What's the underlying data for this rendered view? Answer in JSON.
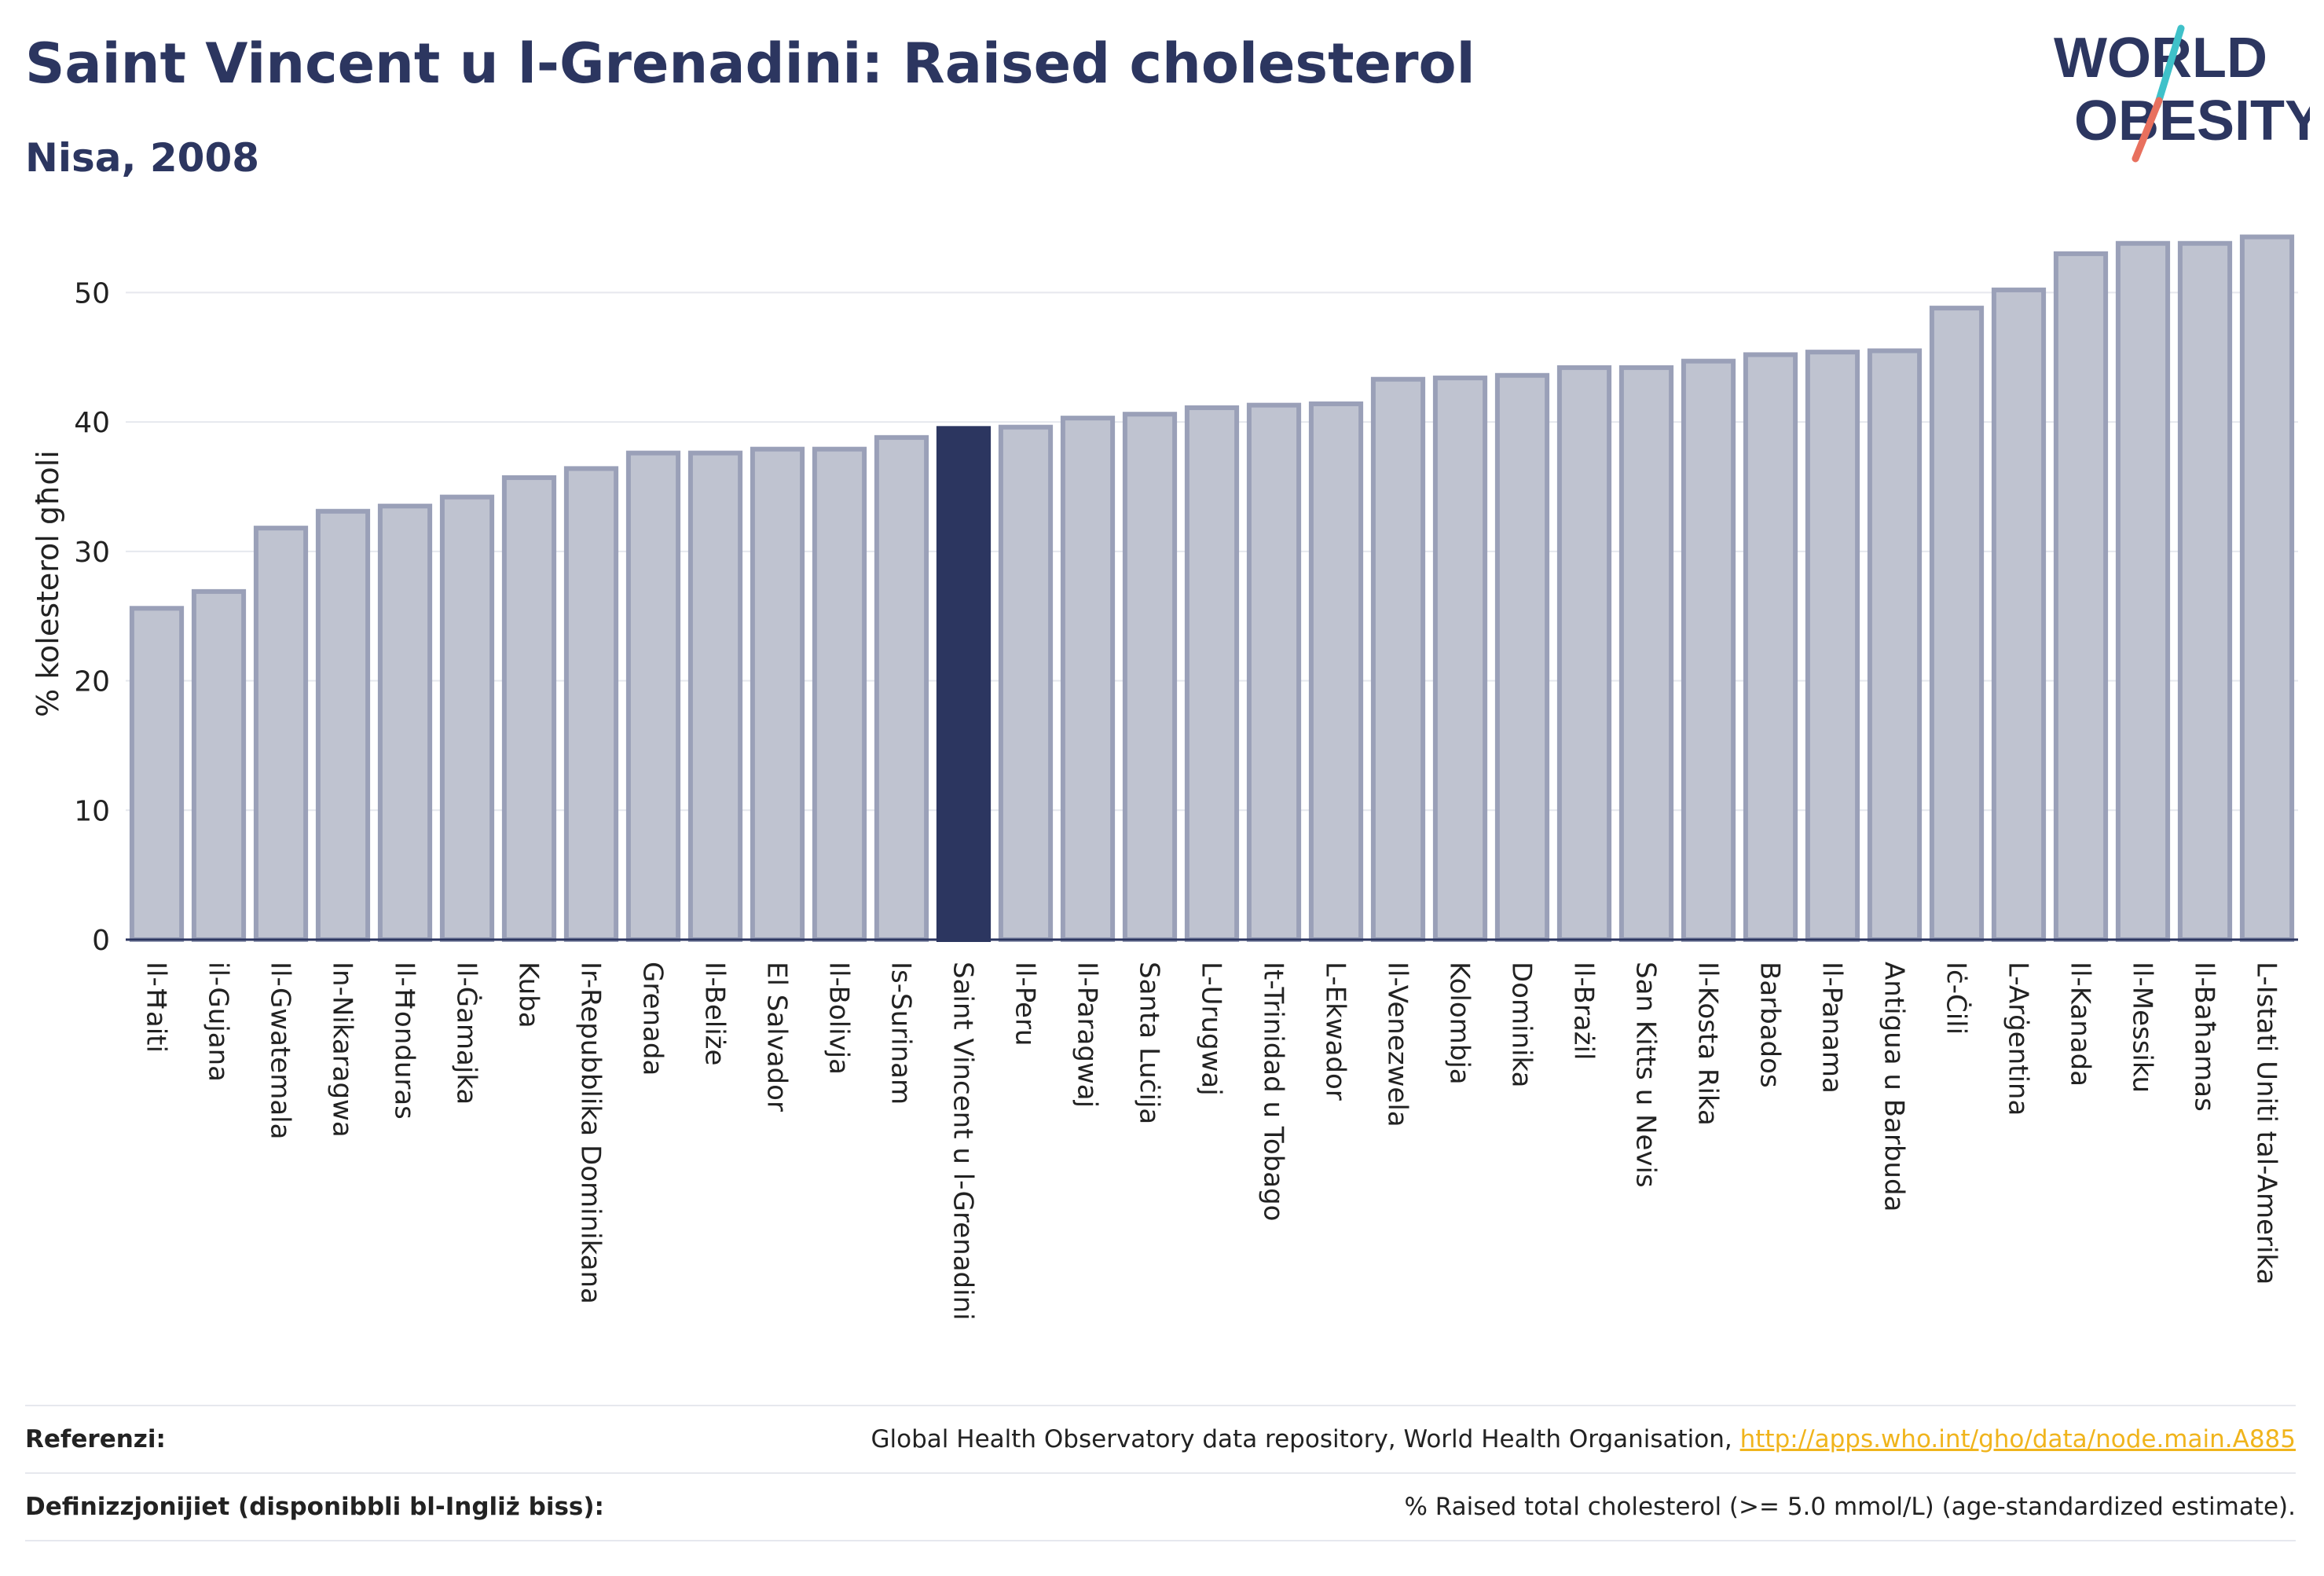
{
  "header": {
    "title": "Saint Vincent u l-Grenadini: Raised cholesterol",
    "subtitle": "Nisa, 2008"
  },
  "logo": {
    "line1": "WORLD",
    "line2": "OBESITY",
    "colors": {
      "text": "#2c3660",
      "accent_teal": "#3fc1c9",
      "accent_coral": "#e8705e"
    }
  },
  "chart_data": {
    "type": "bar",
    "ylabel": "% kolesterol għoli",
    "ylim": [
      0,
      55
    ],
    "yticks": [
      0,
      10,
      20,
      30,
      40,
      50
    ],
    "grid": true,
    "highlight": "Saint Vincent u l-Grenadini",
    "colors": {
      "bar": "#bfc3d0",
      "bar_border": "#9aa0b8",
      "highlight": "#2c3660",
      "grid": "#e6e8ee",
      "axis": "#2c3660"
    },
    "categories": [
      "Il-Ħaiti",
      "il-Gujana",
      "Il-Gwatemala",
      "In-Nikaragwa",
      "Il-Ħonduras",
      "Il-Ġamajka",
      "Kuba",
      "Ir-Repubblika Dominikana",
      "Grenada",
      "Il-Beliże",
      "El Salvador",
      "Il-Bolivja",
      "Is-Surinam",
      "Saint Vincent u l-Grenadini",
      "Il-Peru",
      "Il-Paragwaj",
      "Santa Luċija",
      "L-Urugwaj",
      "It-Trinidad u Tobago",
      "L-Ekwador",
      "Il-Venezwela",
      "Kolombja",
      "Dominika",
      "Il-Brażil",
      "San Kitts u Nevis",
      "Il-Kosta Rika",
      "Barbados",
      "Il-Panama",
      "Antigua u Barbuda",
      "Iċ-Ċili",
      "L-Arġentina",
      "Il-Kanada",
      "Il-Messiku",
      "Il-Baħamas",
      "L-Istati Uniti tal-Amerika"
    ],
    "values": [
      25.6,
      26.9,
      31.8,
      33.1,
      33.5,
      34.2,
      35.7,
      36.4,
      37.6,
      37.6,
      37.9,
      37.9,
      38.8,
      39.5,
      39.6,
      40.3,
      40.6,
      41.1,
      41.3,
      41.4,
      43.3,
      43.4,
      43.6,
      44.2,
      44.2,
      44.7,
      45.2,
      45.4,
      45.5,
      48.8,
      50.2,
      53.0,
      53.8,
      53.8,
      54.3
    ]
  },
  "footer": {
    "references_label": "Referenzi:",
    "references_text": "Global Health Observatory data repository, World Health Organisation, ",
    "references_link": "http://apps.who.int/gho/data/node.main.A885",
    "definitions_label": "Definizzjonijiet (disponibbli bl-Ingliż biss):",
    "definitions_text": "% Raised total cholesterol (>= 5.0 mmol/L) (age-standardized estimate)."
  }
}
